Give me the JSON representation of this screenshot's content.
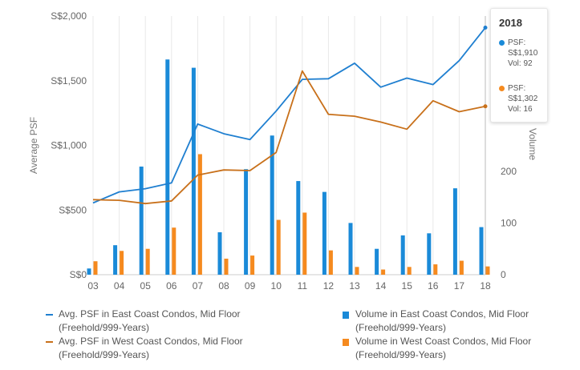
{
  "chart_data": {
    "type": "bar+line",
    "categories": [
      "03",
      "04",
      "05",
      "06",
      "07",
      "08",
      "09",
      "10",
      "11",
      "12",
      "13",
      "14",
      "15",
      "16",
      "17",
      "18"
    ],
    "y_left": {
      "title": "Average PSF",
      "ticks": [
        "S$0",
        "S$500",
        "S$1,000",
        "S$1,500",
        "S$2,000"
      ],
      "range": [
        0,
        2000
      ]
    },
    "y_right": {
      "title": "Volume",
      "ticks": [
        "0",
        "100",
        "200"
      ],
      "range": [
        0,
        500
      ]
    },
    "series": [
      {
        "name": "Avg. PSF in East Coast Condos, Mid Floor (Freehold/999-Years)",
        "kind": "line",
        "axis": "left",
        "color": "#1f7fd0",
        "values": [
          555,
          640,
          665,
          710,
          1165,
          1090,
          1045,
          1265,
          1510,
          1515,
          1635,
          1450,
          1520,
          1470,
          1655,
          1910
        ]
      },
      {
        "name": "Avg. PSF in West Coast Condos, Mid Floor (Freehold/999-Years)",
        "kind": "line",
        "axis": "left",
        "color": "#c8701a",
        "values": [
          580,
          575,
          550,
          570,
          770,
          810,
          805,
          945,
          1575,
          1240,
          1225,
          1180,
          1125,
          1345,
          1260,
          1302
        ]
      },
      {
        "name": "Volume in East Coast Condos, Mid Floor (Freehold/999-Years)",
        "kind": "bar",
        "axis": "right",
        "color": "#1a8ad8",
        "values": [
          12,
          57,
          209,
          416,
          400,
          82,
          204,
          269,
          181,
          160,
          100,
          50,
          76,
          80,
          167,
          92
        ]
      },
      {
        "name": "Volume in West Coast Condos, Mid Floor (Freehold/999-Years)",
        "kind": "bar",
        "axis": "right",
        "color": "#f58a1f",
        "values": [
          26,
          46,
          50,
          91,
          233,
          31,
          37,
          106,
          120,
          47,
          15,
          10,
          15,
          20,
          27,
          16
        ]
      }
    ]
  },
  "legend": [
    {
      "line1": "Avg. PSF in East Coast Condos, Mid Floor",
      "line2": "(Freehold/999-Years)"
    },
    {
      "line1": "Avg. PSF in West Coast Condos, Mid Floor",
      "line2": "(Freehold/999-Years)"
    },
    {
      "line1": "Volume in East Coast Condos, Mid Floor",
      "line2": "(Freehold/999-Years)"
    },
    {
      "line1": "Volume in West Coast Condos, Mid Floor",
      "line2": "(Freehold/999-Years)"
    }
  ],
  "tooltip": {
    "year": "2018",
    "east": {
      "psf_label": "PSF:",
      "psf_value": "S$1,910",
      "vol": "Vol: 92"
    },
    "west": {
      "psf_label": "PSF:",
      "psf_value": "S$1,302",
      "vol": "Vol: 16"
    }
  }
}
